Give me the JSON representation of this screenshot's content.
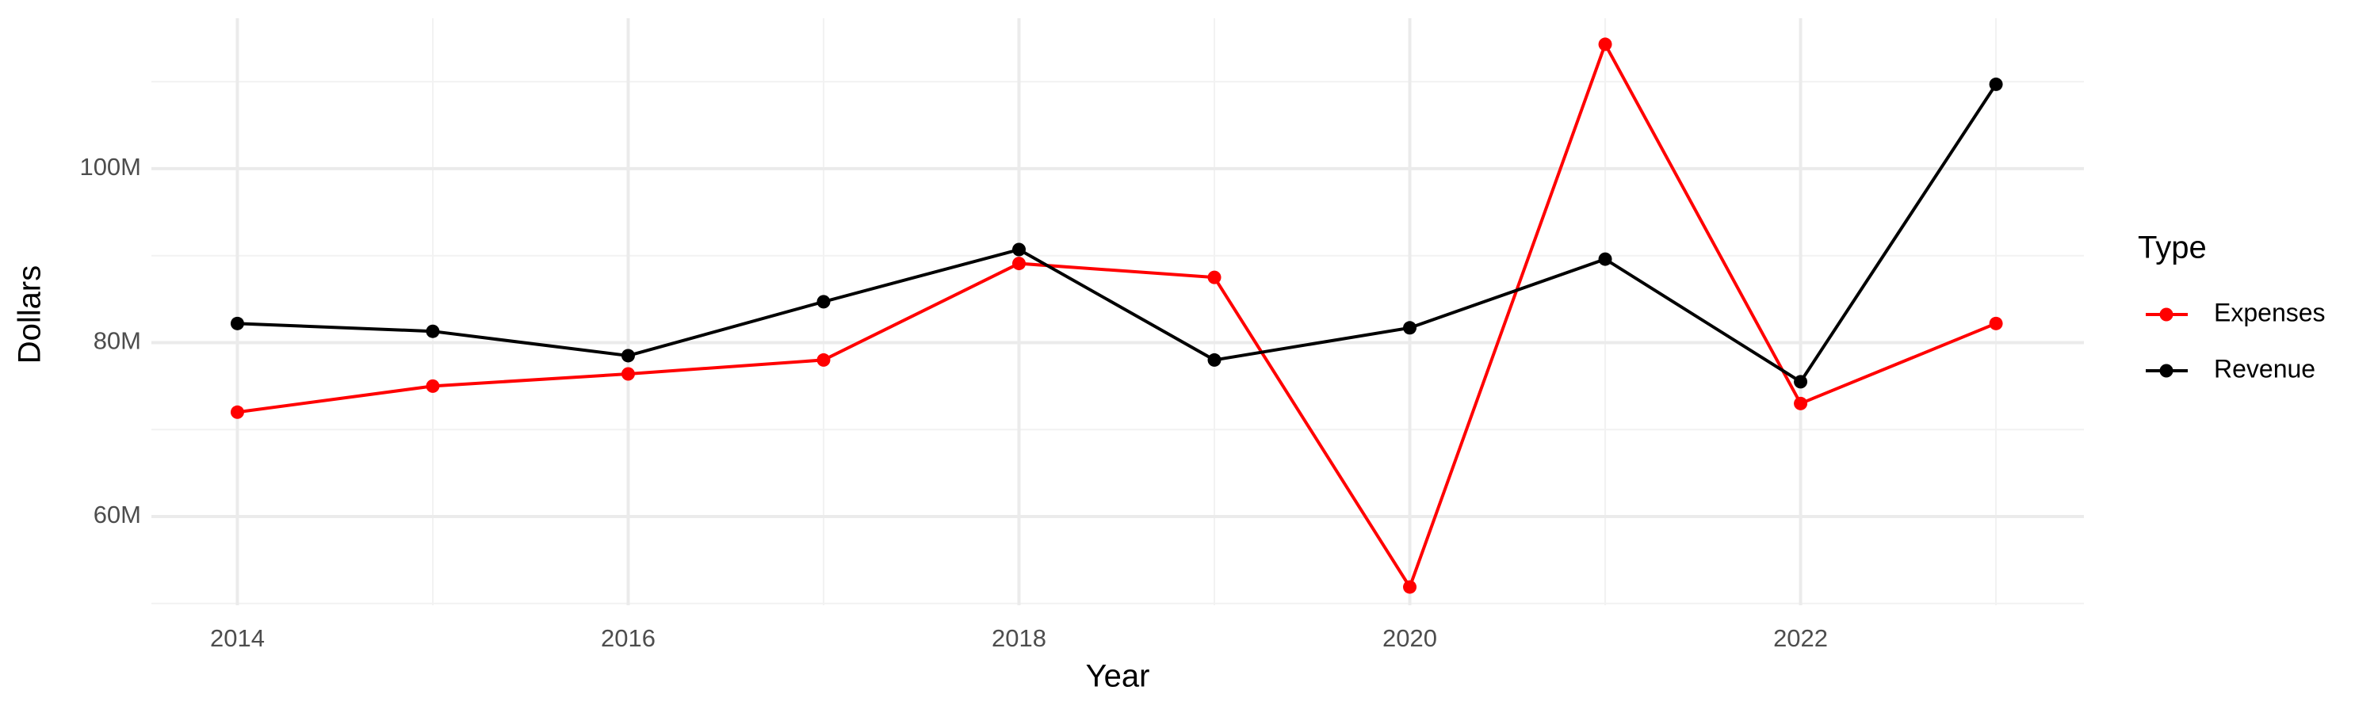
{
  "chart_data": {
    "type": "line",
    "x_label": "Year",
    "y_label": "Dollars",
    "x": [
      2014,
      2015,
      2016,
      2017,
      2018,
      2019,
      2020,
      2021,
      2022,
      2023
    ],
    "series": [
      {
        "name": "Expenses",
        "color": "#ff0000",
        "values": [
          72000000,
          75000000,
          76400000,
          78000000,
          89100000,
          87500000,
          51900000,
          114300000,
          73000000,
          82200000
        ]
      },
      {
        "name": "Revenue",
        "color": "#000000",
        "values": [
          82200000,
          81300000,
          78500000,
          84700000,
          90700000,
          78000000,
          81700000,
          89600000,
          75500000,
          109700000
        ]
      }
    ],
    "xlim": [
      2013.56,
      2023.45
    ],
    "xticks": [
      2014,
      2016,
      2018,
      2020,
      2022
    ],
    "ylim": [
      49800000,
      117300000
    ],
    "yticks": [
      {
        "value": 60000000,
        "label": "60M"
      },
      {
        "value": 80000000,
        "label": "80M"
      },
      {
        "value": 100000000,
        "label": "100M"
      }
    ],
    "x_minor_grid": [
      2015,
      2017,
      2019,
      2021,
      2023
    ],
    "y_minor_grid": [
      50000000,
      70000000,
      90000000,
      110000000
    ],
    "grid": true,
    "legend": "right",
    "legend_title": "Type"
  }
}
